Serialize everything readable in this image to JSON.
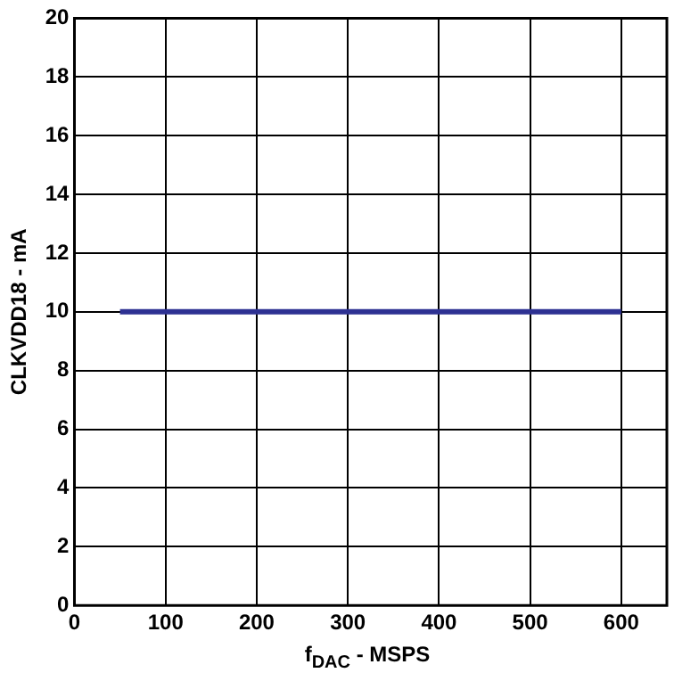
{
  "chart_data": {
    "type": "line",
    "xlabel": "f$_{DAC}$ - MSPS",
    "ylabel": "CLKVDD18 - mA",
    "x": [
      50,
      600
    ],
    "series": [
      {
        "color": "#2e3192",
        "values": [
          10,
          10
        ]
      }
    ],
    "xlim": [
      0,
      650
    ],
    "xticks": [
      0,
      100,
      200,
      300,
      400,
      500,
      600
    ],
    "ylim": [
      0,
      20
    ],
    "yticks": [
      0,
      2,
      4,
      6,
      8,
      10,
      12,
      14,
      16,
      18,
      20
    ],
    "grid": true,
    "legend": false,
    "marker": "none",
    "line_style": "solid"
  }
}
